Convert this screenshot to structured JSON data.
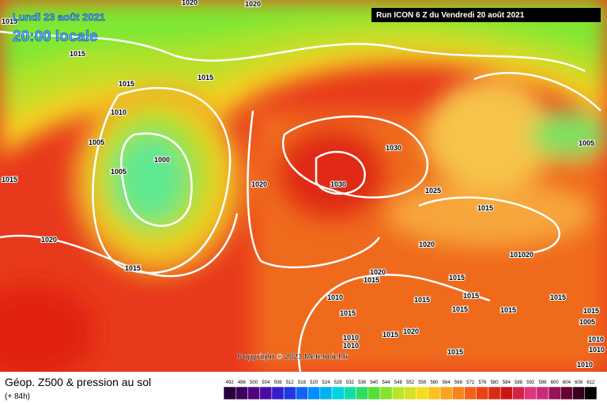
{
  "header": {
    "date": "Lundi 23 août 2021",
    "time": "20:00 locale",
    "run": "Run ICON 6 Z du Vendredi 20 août 2021"
  },
  "copyright": "Copyright © 2021 Meteociel.fr",
  "footer": {
    "title": "Géop. Z500 & pression au sol",
    "lead": "(+ 84h)"
  },
  "isobar_labels": [
    "1020",
    "1020",
    "1015",
    "1015",
    "1015",
    "1015",
    "1010",
    "1005",
    "1000",
    "1005",
    "1015",
    "1020",
    "1030",
    "1030",
    "1025",
    "1015",
    "1005",
    "1020",
    "1015",
    "1020",
    "1020",
    "1015",
    "101020",
    "1015",
    "1015",
    "1010",
    "1015",
    "1015",
    "1015",
    "1015",
    "1015",
    "1005",
    "1010",
    "1015",
    "1010",
    "1010",
    "1015",
    "1020",
    "1015",
    "1010",
    "1010"
  ],
  "colorbar": [
    492,
    496,
    500,
    504,
    508,
    512,
    516,
    520,
    524,
    528,
    532,
    536,
    540,
    544,
    548,
    552,
    556,
    560,
    564,
    568,
    572,
    576,
    580,
    584,
    588,
    592,
    596,
    600,
    604,
    608,
    612
  ]
}
